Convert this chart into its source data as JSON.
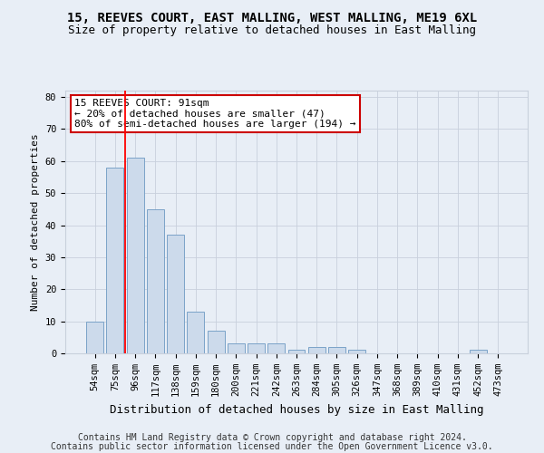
{
  "title": "15, REEVES COURT, EAST MALLING, WEST MALLING, ME19 6XL",
  "subtitle": "Size of property relative to detached houses in East Malling",
  "xlabel": "Distribution of detached houses by size in East Malling",
  "ylabel": "Number of detached properties",
  "bar_color": "#ccdaeb",
  "bar_edge_color": "#7ba3c8",
  "background_color": "#e8eef6",
  "categories": [
    "54sqm",
    "75sqm",
    "96sqm",
    "117sqm",
    "138sqm",
    "159sqm",
    "180sqm",
    "200sqm",
    "221sqm",
    "242sqm",
    "263sqm",
    "284sqm",
    "305sqm",
    "326sqm",
    "347sqm",
    "368sqm",
    "389sqm",
    "410sqm",
    "431sqm",
    "452sqm",
    "473sqm"
  ],
  "values": [
    10,
    58,
    61,
    45,
    37,
    13,
    7,
    3,
    3,
    3,
    1,
    2,
    2,
    1,
    0,
    0,
    0,
    0,
    0,
    1,
    0
  ],
  "ylim": [
    0,
    82
  ],
  "yticks": [
    0,
    10,
    20,
    30,
    40,
    50,
    60,
    70,
    80
  ],
  "red_line_index": 1.5,
  "annotation_line1": "15 REEVES COURT: 91sqm",
  "annotation_line2": "← 20% of detached houses are smaller (47)",
  "annotation_line3": "80% of semi-detached houses are larger (194) →",
  "annotation_box_color": "#ffffff",
  "annotation_box_edge_color": "#cc0000",
  "footnote_line1": "Contains HM Land Registry data © Crown copyright and database right 2024.",
  "footnote_line2": "Contains public sector information licensed under the Open Government Licence v3.0.",
  "grid_color": "#c8d0dc",
  "title_fontsize": 10,
  "subtitle_fontsize": 9,
  "xlabel_fontsize": 9,
  "ylabel_fontsize": 8,
  "tick_fontsize": 7.5,
  "annotation_fontsize": 8,
  "footnote_fontsize": 7
}
